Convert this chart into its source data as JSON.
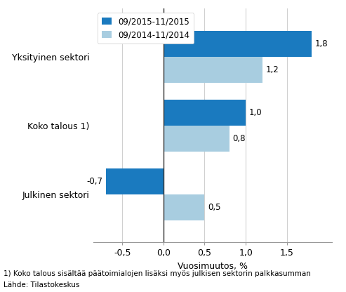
{
  "categories": [
    "Julkinen sektori",
    "Koko talous 1)",
    "Yksityinen sektori"
  ],
  "series_2015": [
    -0.7,
    1.0,
    1.8
  ],
  "series_2014": [
    0.5,
    0.8,
    1.2
  ],
  "color_2015": "#1a7abf",
  "color_2014": "#a8cde0",
  "legend_2015": "09/2015-11/2015",
  "legend_2014": "09/2014-11/2014",
  "xlabel": "Vuosimuutos, %",
  "xlim": [
    -0.85,
    2.05
  ],
  "xticks": [
    -0.5,
    0.0,
    0.5,
    1.0,
    1.5
  ],
  "xtick_labels": [
    "-0,5",
    "0,0",
    "0,5",
    "1,0",
    "1,5"
  ],
  "footnote1": "1) Koko talous sisältää päätoimialojen lisäksi myös julkisen sektorin palkkasumman",
  "footnote2": "Lähde: Tilastokeskus",
  "bar_height": 0.38,
  "label_fontsize": 8.5,
  "tick_fontsize": 9,
  "legend_fontsize": 8.5,
  "xlabel_fontsize": 9,
  "footnote_fontsize": 7.5,
  "background_color": "#ffffff",
  "grid_color": "#d0d0d0"
}
